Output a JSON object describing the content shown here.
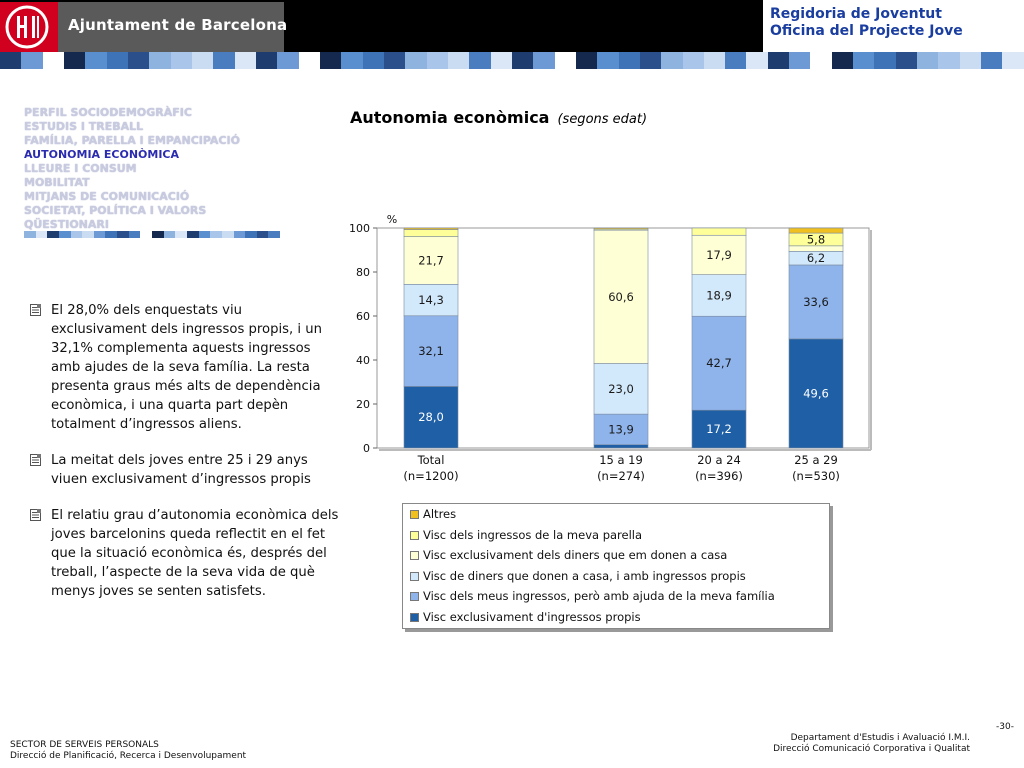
{
  "header": {
    "brand": "Ajuntament de Barcelona",
    "dept_line1": "Regidoria de Joventut",
    "dept_line2": "Oficina del Projecte Jove"
  },
  "colors": {
    "brand_red": "#d0001e",
    "nav_active": "#2b2bb0",
    "dept_blue": "#1a3ea0"
  },
  "nav": {
    "items": [
      {
        "label": "PERFIL SOCIODEMOGRÀFIC",
        "active": false
      },
      {
        "label": "ESTUDIS I TREBALL",
        "active": false
      },
      {
        "label": "FAMÍLIA, PARELLA I EMPANCIPACIÓ",
        "active": false
      },
      {
        "label": "AUTONOMIA ECONÒMICA",
        "active": true
      },
      {
        "label": "LLEURE I CONSUM",
        "active": false
      },
      {
        "label": "MOBILITAT",
        "active": false
      },
      {
        "label": "MITJANS DE COMUNICACIÓ",
        "active": false
      },
      {
        "label": "SOCIETAT, POLÍTICA I VALORS",
        "active": false
      },
      {
        "label": "QÜESTIONARI",
        "active": false
      }
    ]
  },
  "main": {
    "title": "Autonomia econòmica",
    "subtitle": "(segons edat)",
    "paragraphs": [
      "El 28,0% dels enquestats viu exclusivament dels ingressos propis, i un 32,1% complementa aquests ingressos amb ajudes de la seva família. La resta presenta graus més alts de dependència econòmica, i una quarta part depèn totalment d’ingressos aliens.",
      "La meitat dels joves entre 25 i 29 anys viuen exclusivament d’ingressos propis",
      "El relatiu grau d’autonomia econòmica dels joves barcelonins queda reflectit en el fet que la situació econòmica és, després del treball, l’aspecte de la seva vida de què menys joves se senten satisfets."
    ]
  },
  "chart_data": {
    "type": "bar",
    "stacked": true,
    "ylabel": "%",
    "ylim": [
      0,
      100
    ],
    "yticks": [
      0,
      20,
      40,
      60,
      80,
      100
    ],
    "categories": [
      {
        "label": "Total",
        "sub": "(n=1200)"
      },
      {
        "label": "15 a 19",
        "sub": "(n=274)"
      },
      {
        "label": "20 a 24",
        "sub": "(n=396)"
      },
      {
        "label": "25 a 29",
        "sub": "(n=530)"
      }
    ],
    "series": [
      {
        "name": "Visc exclusivament d'ingressos propis",
        "color": "#1f5fa6",
        "text_color": "#ffffff",
        "values": [
          28.0,
          1.5,
          17.2,
          49.6
        ],
        "labels": [
          "28,0",
          "",
          "17,2",
          "49,6"
        ]
      },
      {
        "name": "Visc dels meus ingressos, però amb ajuda de la meva família",
        "color": "#8fb4ec",
        "text_color": "#1a1a1a",
        "values": [
          32.1,
          13.9,
          42.7,
          33.6
        ],
        "labels": [
          "32,1",
          "13,9",
          "42,7",
          "33,6"
        ]
      },
      {
        "name": "Visc de diners que donen a casa, i amb ingressos propis",
        "color": "#d2e9fb",
        "text_color": "#1a1a1a",
        "values": [
          14.3,
          23.0,
          18.9,
          6.2
        ],
        "labels": [
          "14,3",
          "23,0",
          "18,9",
          "6,2"
        ]
      },
      {
        "name": "Visc exclusivament dels diners que em donen a casa",
        "color": "#ffffd6",
        "text_color": "#1a1a1a",
        "values": [
          21.7,
          60.6,
          17.9,
          2.5
        ],
        "labels": [
          "21,7",
          "60,6",
          "17,9",
          ""
        ]
      },
      {
        "name": "Visc dels ingressos de la meva parella",
        "color": "#ffff9a",
        "text_color": "#1a1a1a",
        "values": [
          3.2,
          0.5,
          3.3,
          5.8
        ],
        "labels": [
          "",
          "",
          "",
          "5,8"
        ]
      },
      {
        "name": "Altres",
        "color": "#f0c020",
        "text_color": "#1a1a1a",
        "values": [
          0.7,
          0.5,
          0.0,
          2.3
        ],
        "labels": [
          "",
          "",
          "",
          ""
        ]
      }
    ],
    "legend_order": [
      5,
      4,
      3,
      2,
      1,
      0
    ],
    "grid": false
  },
  "footer": {
    "left_line1": "SECTOR DE SERVEIS PERSONALS",
    "left_line2": "Direcció de Planificació, Recerca i Desenvolupament",
    "right_line1": "Departament d'Estudis i Avaluació I.M.I.",
    "right_line2": "Direcció Comunicació Corporativa i Qualitat",
    "page": "-30-"
  }
}
